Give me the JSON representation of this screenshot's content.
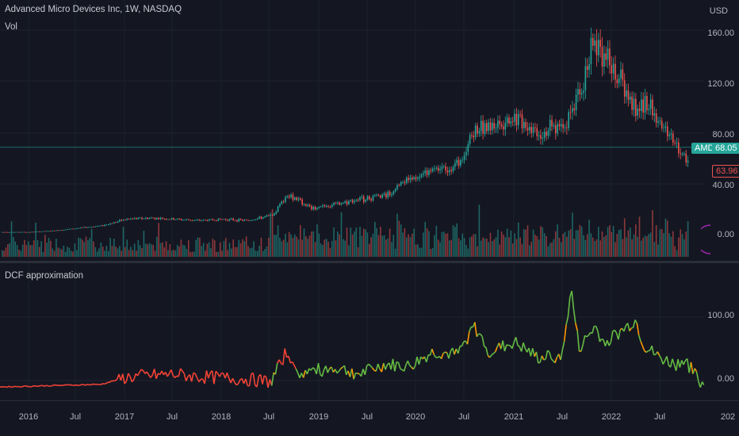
{
  "header": {
    "symbol_title": "Advanced Micro Devices Inc, 1W, NASDAQ",
    "vol_label": "Vol",
    "indicator_title": "DCF approximation"
  },
  "price_axis": {
    "currency": "USD",
    "labels": [
      "160.00",
      "120.00",
      "80.00",
      "40.00",
      "0.00"
    ],
    "current_price": "68.05",
    "symbol_tag": "AMD",
    "low_price": "63.96"
  },
  "indicator_axis": {
    "labels": [
      "100.00",
      "0.00"
    ]
  },
  "time_axis": {
    "labels": [
      "2016",
      "Jul",
      "2017",
      "Jul",
      "2018",
      "Jul",
      "2019",
      "Jul",
      "2020",
      "Jul",
      "2021",
      "Jul",
      "2022",
      "Jul",
      "202"
    ]
  },
  "colors": {
    "background": "#141722",
    "up": "#26a69a",
    "down": "#ef5350",
    "dcf_green": "#66bb44",
    "dcf_orange": "#ff9800",
    "dcf_red": "#f44336"
  },
  "chart_data": {
    "type": "line",
    "title": "Advanced Micro Devices Inc, 1W, NASDAQ",
    "price_series": {
      "name": "AMD",
      "x": [
        "2015-10",
        "2016-01",
        "2016-04",
        "2016-07",
        "2016-10",
        "2017-01",
        "2017-04",
        "2017-07",
        "2017-10",
        "2018-01",
        "2018-04",
        "2018-07",
        "2018-09",
        "2018-12",
        "2019-03",
        "2019-06",
        "2019-09",
        "2019-12",
        "2020-03",
        "2020-06",
        "2020-08",
        "2020-10",
        "2021-01",
        "2021-04",
        "2021-07",
        "2021-09",
        "2021-11",
        "2021-12",
        "2022-02",
        "2022-04",
        "2022-05",
        "2022-07",
        "2022-09",
        "2022-10",
        "2022-11",
        "2022-12"
      ],
      "values": [
        2,
        2,
        3,
        5,
        7,
        12,
        13,
        12,
        11,
        12,
        11,
        15,
        32,
        20,
        24,
        28,
        30,
        45,
        50,
        55,
        82,
        84,
        92,
        80,
        86,
        108,
        155,
        140,
        120,
        95,
        105,
        86,
        70,
        60,
        65,
        68.05
      ],
      "ylim": [
        0,
        170
      ]
    },
    "dcf_series": {
      "name": "DCF approximation",
      "x": [
        "2015-10",
        "2016-04",
        "2016-10",
        "2017-01",
        "2017-04",
        "2017-07",
        "2017-10",
        "2018-01",
        "2018-04",
        "2018-07",
        "2018-09",
        "2018-10",
        "2018-12",
        "2019-03",
        "2019-06",
        "2019-09",
        "2019-12",
        "2020-03",
        "2020-06",
        "2020-08",
        "2020-10",
        "2021-01",
        "2021-04",
        "2021-07",
        "2021-08",
        "2021-09",
        "2021-11",
        "2021-12",
        "2022-02",
        "2022-04",
        "2022-05",
        "2022-07",
        "2022-09",
        "2022-10",
        "2022-12"
      ],
      "values": [
        -10,
        -8,
        -6,
        5,
        8,
        10,
        6,
        4,
        2,
        -2,
        50,
        10,
        15,
        20,
        10,
        25,
        22,
        45,
        40,
        85,
        45,
        60,
        35,
        40,
        145,
        50,
        85,
        60,
        75,
        95,
        55,
        35,
        25,
        35,
        -5
      ],
      "ylim": [
        -25,
        160
      ]
    }
  }
}
